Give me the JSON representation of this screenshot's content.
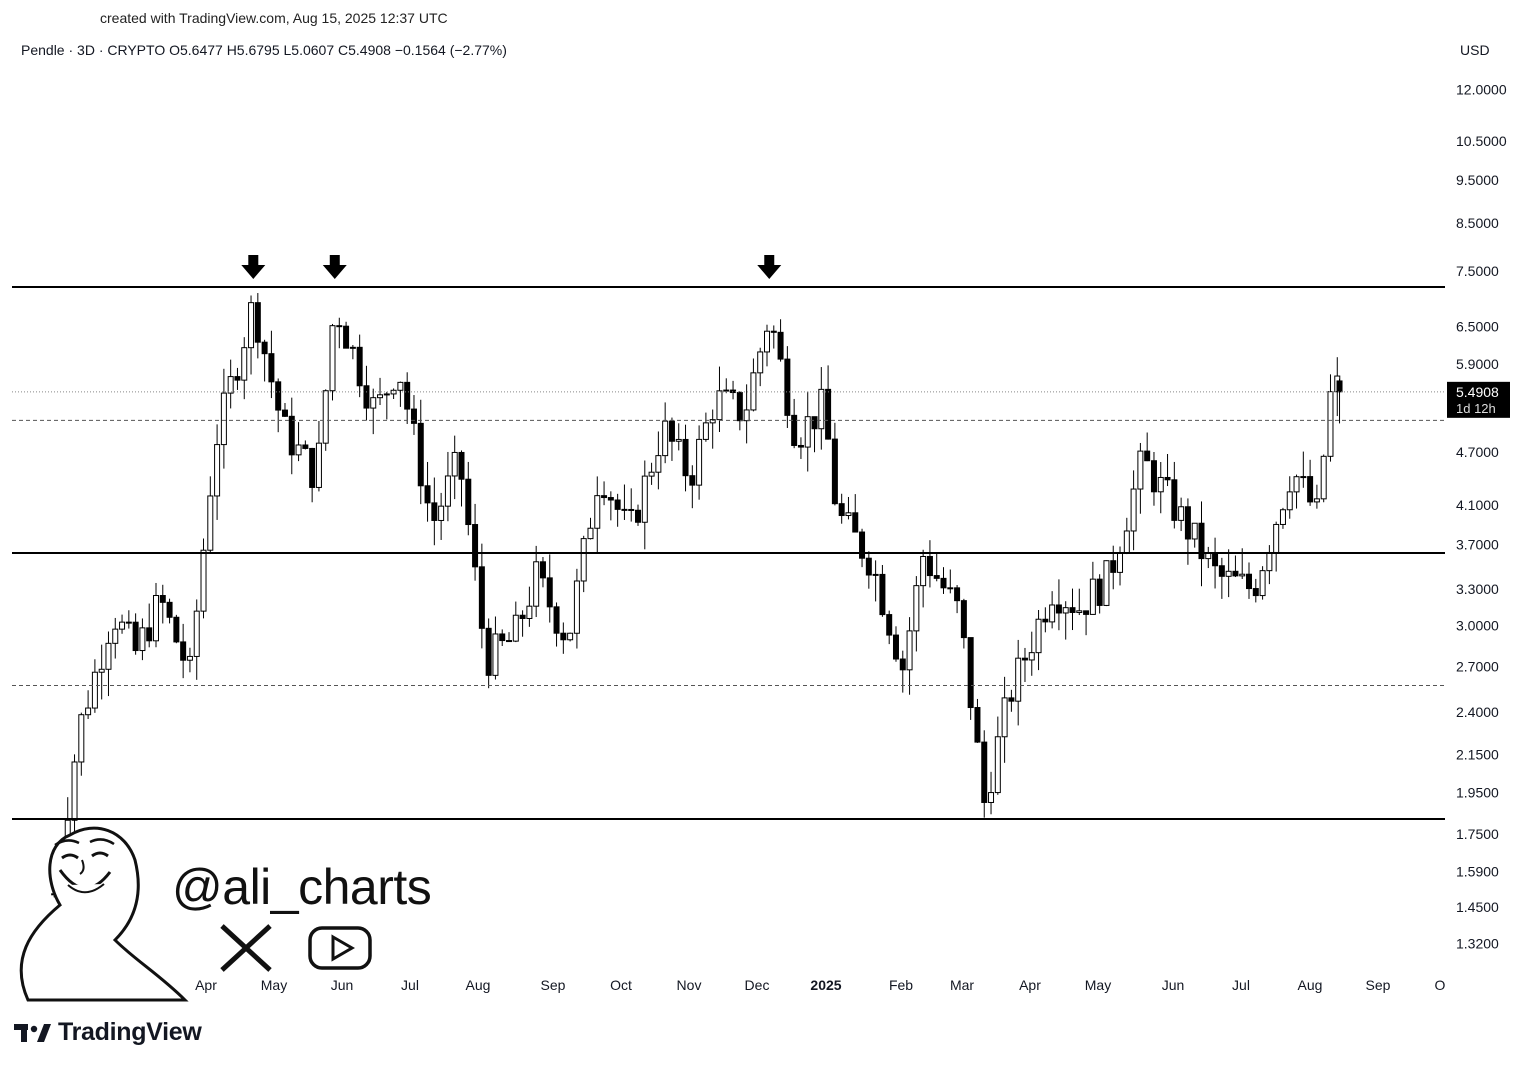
{
  "header": {
    "created_text": "created with TradingView.com, Aug 15, 2025 12:37 UTC",
    "symbol_line": "Pendle · 3D · CRYPTO  O5.6477  H5.6795  L5.0607  C5.4908  −0.1564 (−2.77%)"
  },
  "watermark": {
    "handle": "@ali_charts",
    "icons": [
      "x-logo-icon",
      "youtube-icon",
      "cartoon-avatar"
    ]
  },
  "brand": {
    "name": "TradingView"
  },
  "colors": {
    "up": "#ffffff",
    "down": "#000000",
    "wick": "#000000",
    "line": "#000000"
  },
  "chart_data": {
    "type": "candlestick",
    "symbol": "Pendle",
    "timeframe": "3D",
    "exchange": "CRYPTO",
    "ohlc_last": {
      "open": 5.6477,
      "high": 5.6795,
      "low": 5.0607,
      "close": 5.4908,
      "change": -0.1564,
      "change_pct": -2.77
    },
    "y_axis": {
      "unit": "USD",
      "scale": "log",
      "range": [
        1.22,
        13.2
      ],
      "ticks": [
        12.0,
        10.5,
        9.5,
        8.5,
        7.5,
        6.5,
        5.9,
        4.7,
        4.1,
        3.7,
        3.3,
        3.0,
        2.7,
        2.4,
        2.15,
        1.95,
        1.75,
        1.59,
        1.45,
        1.32
      ],
      "tick_labels": [
        "12.0000",
        "10.5000",
        "9.5000",
        "8.5000",
        "7.5000",
        "6.5000",
        "5.9000",
        "4.7000",
        "4.1000",
        "3.7000",
        "3.3000",
        "3.0000",
        "2.7000",
        "2.4000",
        "2.1500",
        "1.9500",
        "1.7500",
        "1.5900",
        "1.4500",
        "1.3200"
      ]
    },
    "x_axis": {
      "labels": [
        "Feb",
        "Mar",
        "Apr",
        "May",
        "Jun",
        "Jul",
        "Aug",
        "Sep",
        "Oct",
        "Nov",
        "Dec",
        "2025",
        "Feb",
        "Mar",
        "Apr",
        "May",
        "Jun",
        "Jul",
        "Aug",
        "Sep",
        "O"
      ],
      "bold": [
        "2025"
      ]
    },
    "last_price": {
      "value": 5.4908,
      "label": "5.4908",
      "countdown": "1d 12h"
    },
    "resistance": 7.2,
    "support_lines": [
      3.62,
      1.82
    ],
    "dashed_levels": [
      5.1,
      2.57
    ],
    "arrows": [
      {
        "time": "2024-04-22",
        "price": 7.25
      },
      {
        "time": "2024-05-28",
        "price": 7.25
      },
      {
        "time": "2024-12-06",
        "price": 7.25
      }
    ],
    "path": [
      [
        "2024-01-25",
        1.5
      ],
      [
        "2024-02-05",
        2.3
      ],
      [
        "2024-02-20",
        3.1
      ],
      [
        "2024-03-01",
        2.8
      ],
      [
        "2024-03-12",
        3.2
      ],
      [
        "2024-03-25",
        2.65
      ],
      [
        "2024-04-05",
        4.8
      ],
      [
        "2024-04-22",
        6.9
      ],
      [
        "2024-05-05",
        5.0
      ],
      [
        "2024-05-20",
        4.4
      ],
      [
        "2024-05-28",
        6.9
      ],
      [
        "2024-06-15",
        5.2
      ],
      [
        "2024-06-25",
        5.9
      ],
      [
        "2024-07-10",
        3.9
      ],
      [
        "2024-07-22",
        4.6
      ],
      [
        "2024-08-03",
        2.75
      ],
      [
        "2024-08-15",
        2.9
      ],
      [
        "2024-08-25",
        3.4
      ],
      [
        "2024-09-08",
        2.9
      ],
      [
        "2024-09-22",
        4.5
      ],
      [
        "2024-10-05",
        3.8
      ],
      [
        "2024-10-20",
        5.0
      ],
      [
        "2024-11-01",
        4.4
      ],
      [
        "2024-11-12",
        5.4
      ],
      [
        "2024-11-25",
        5.2
      ],
      [
        "2024-12-06",
        6.7
      ],
      [
        "2024-12-18",
        4.9
      ],
      [
        "2024-12-30",
        5.3
      ],
      [
        "2025-01-05",
        4.0
      ],
      [
        "2025-01-20",
        3.55
      ],
      [
        "2025-02-03",
        2.7
      ],
      [
        "2025-02-12",
        3.6
      ],
      [
        "2025-02-28",
        3.1
      ],
      [
        "2025-03-11",
        1.9
      ],
      [
        "2025-03-22",
        2.5
      ],
      [
        "2025-04-10",
        3.3
      ],
      [
        "2025-04-22",
        3.15
      ],
      [
        "2025-05-05",
        3.4
      ],
      [
        "2025-05-20",
        4.6
      ],
      [
        "2025-06-05",
        4.0
      ],
      [
        "2025-06-22",
        3.4
      ],
      [
        "2025-07-08",
        3.3
      ],
      [
        "2025-07-25",
        4.5
      ],
      [
        "2025-08-05",
        4.0
      ],
      [
        "2025-08-12",
        5.7
      ],
      [
        "2025-08-15",
        5.49
      ]
    ]
  }
}
